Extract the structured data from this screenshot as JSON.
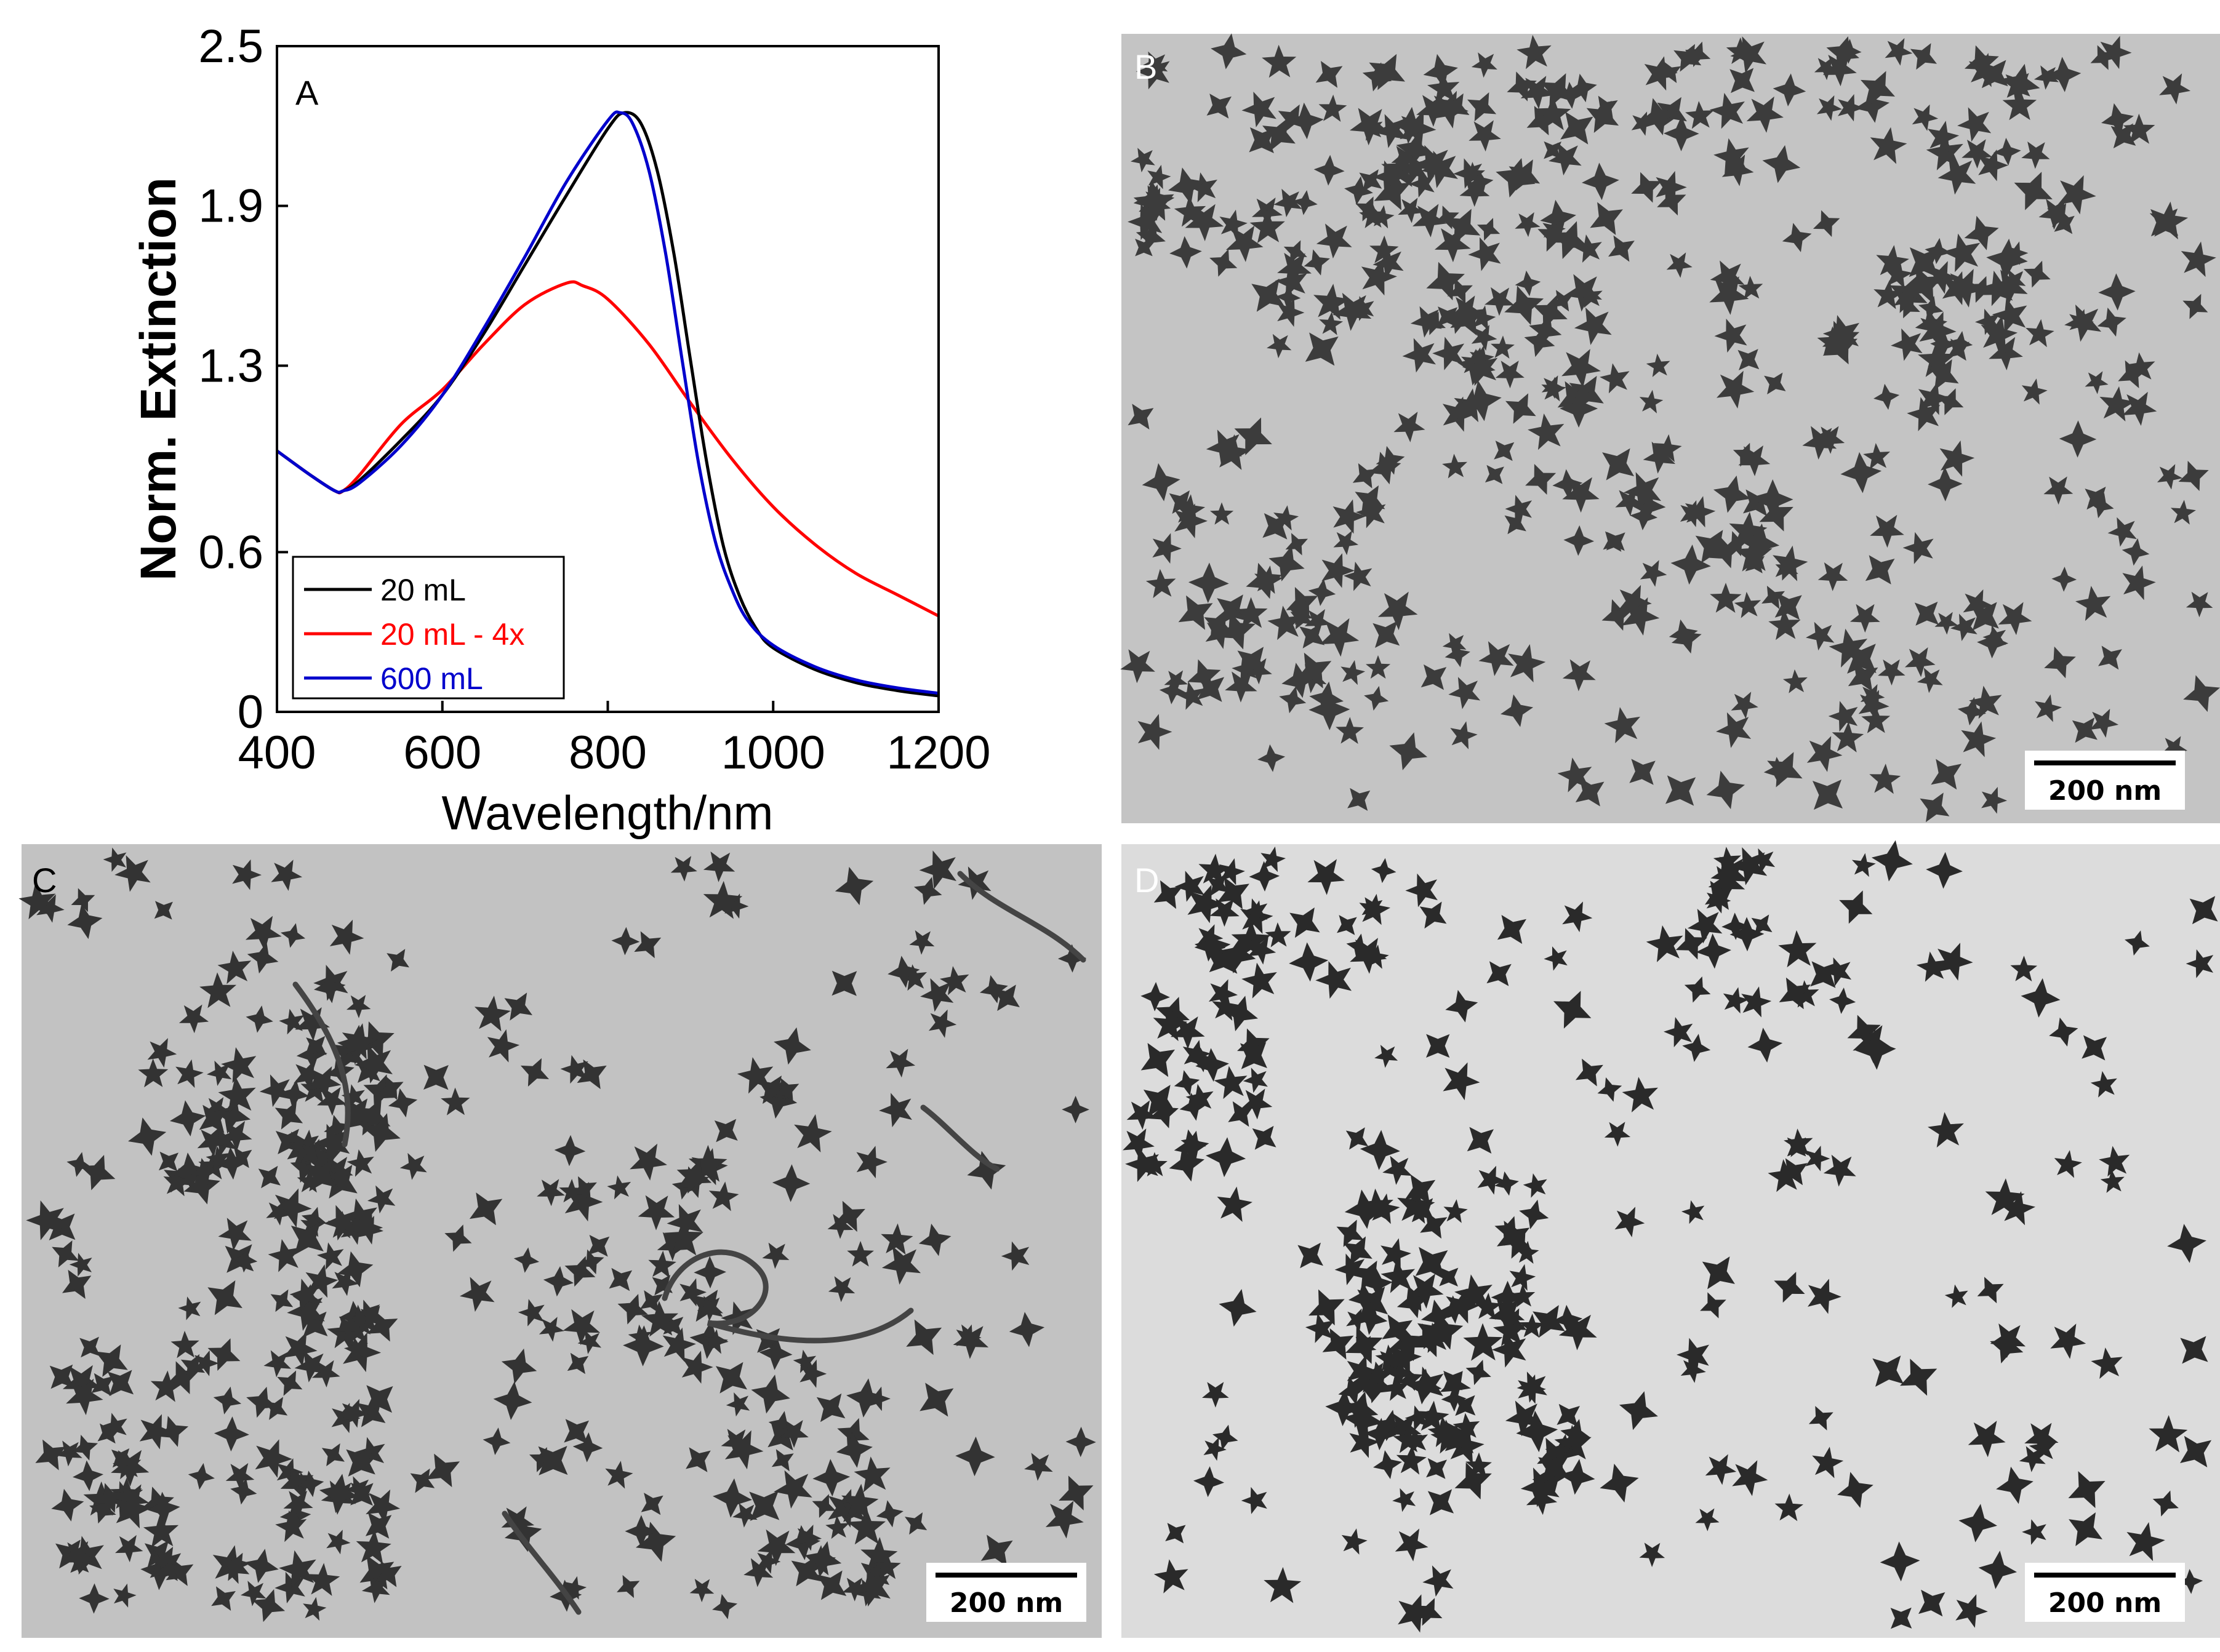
{
  "chart_data": {
    "type": "line",
    "panel_label": "A",
    "xlabel": "Wavelength/nm",
    "ylabel": "Norm. Extinction",
    "xlim": [
      400,
      1200
    ],
    "ylim": [
      0,
      2.5
    ],
    "xticks": [
      "400",
      "600",
      "800",
      "1000",
      "1200"
    ],
    "yticks": [
      "0",
      "0.6",
      "1.3",
      "1.9",
      "2.5"
    ],
    "legend_position": "bottom-left",
    "grid": false,
    "series": [
      {
        "name": "20 mL",
        "color": "#000000",
        "x": [
          400,
          440,
          470,
          480,
          500,
          550,
          600,
          650,
          700,
          750,
          800,
          820,
          840,
          860,
          880,
          900,
          920,
          940,
          960,
          980,
          1000,
          1050,
          1100,
          1150,
          1200
        ],
        "y": [
          0.98,
          0.89,
          0.83,
          0.83,
          0.87,
          1.02,
          1.19,
          1.42,
          1.68,
          1.94,
          2.19,
          2.25,
          2.21,
          2.03,
          1.72,
          1.32,
          0.93,
          0.62,
          0.43,
          0.31,
          0.24,
          0.16,
          0.11,
          0.08,
          0.06
        ]
      },
      {
        "name": "20 mL - 4x",
        "color": "#ff0000",
        "x": [
          400,
          440,
          470,
          480,
          500,
          550,
          600,
          650,
          700,
          750,
          770,
          800,
          850,
          900,
          950,
          1000,
          1050,
          1100,
          1150,
          1200
        ],
        "y": [
          0.98,
          0.89,
          0.83,
          0.83,
          0.89,
          1.08,
          1.21,
          1.38,
          1.53,
          1.61,
          1.6,
          1.55,
          1.38,
          1.16,
          0.95,
          0.77,
          0.63,
          0.52,
          0.44,
          0.36
        ]
      },
      {
        "name": "600 mL",
        "color": "#0000cc",
        "x": [
          400,
          440,
          470,
          480,
          500,
          550,
          600,
          650,
          700,
          750,
          800,
          815,
          830,
          850,
          870,
          890,
          910,
          930,
          950,
          970,
          1000,
          1050,
          1100,
          1150,
          1200
        ],
        "y": [
          0.98,
          0.89,
          0.83,
          0.83,
          0.86,
          1.0,
          1.19,
          1.44,
          1.71,
          1.99,
          2.22,
          2.25,
          2.21,
          2.03,
          1.72,
          1.32,
          0.93,
          0.64,
          0.46,
          0.34,
          0.25,
          0.17,
          0.12,
          0.09,
          0.07
        ]
      }
    ]
  },
  "panels": {
    "b": {
      "label": "B",
      "scale_bar": "200 nm"
    },
    "c": {
      "label": "C",
      "scale_bar": "200 nm"
    },
    "d": {
      "label": "D",
      "scale_bar": "200 nm"
    }
  },
  "colors": {
    "tem_background": "#c6c6c6",
    "tem_background_light": "#d8d8d8",
    "particle": "#3a3a3a"
  }
}
